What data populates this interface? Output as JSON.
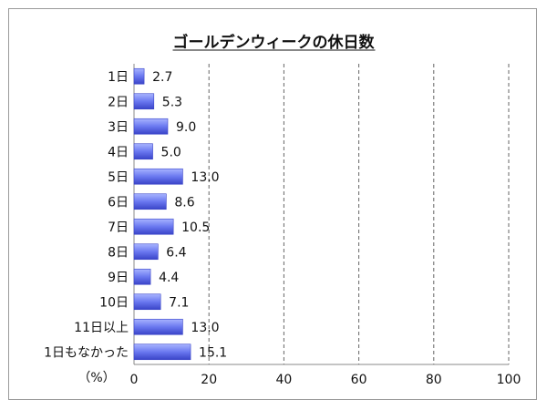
{
  "chart_data": {
    "type": "bar",
    "orientation": "horizontal",
    "title": "ゴールデンウィークの休日数",
    "categories": [
      "1日",
      "2日",
      "3日",
      "4日",
      "5日",
      "6日",
      "7日",
      "8日",
      "9日",
      "10日",
      "11日以上",
      "1日もなかった"
    ],
    "values": [
      2.7,
      5.3,
      9.0,
      5.0,
      13.0,
      8.6,
      10.5,
      6.4,
      4.4,
      7.1,
      13.0,
      15.1
    ],
    "value_labels": [
      "2.7",
      "5.3",
      "9.0",
      "5.0",
      "13.0",
      "8.6",
      "10.5",
      "6.4",
      "4.4",
      "7.1",
      "13.0",
      "15.1"
    ],
    "xunit": "（%）",
    "xlim": [
      0,
      100
    ],
    "xticks": [
      "0",
      "20",
      "40",
      "60",
      "80",
      "100"
    ],
    "xtick_values": [
      0,
      20,
      40,
      60,
      80,
      100
    ],
    "grid": "vertical-dashed",
    "legend": "none",
    "colors": {
      "bar_light": "#a8b4ff",
      "bar_dark": "#3a44c8",
      "grid": "#666666",
      "axis": "#888888"
    }
  }
}
